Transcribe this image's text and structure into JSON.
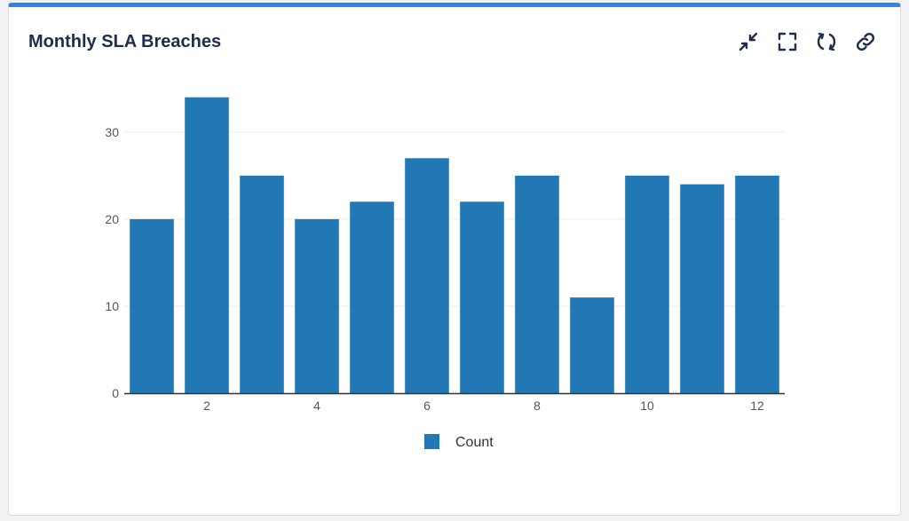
{
  "card": {
    "title": "Monthly SLA Breaches",
    "accent_color": "#2f86e6",
    "toolbar": [
      {
        "name": "collapse-icon"
      },
      {
        "name": "fullscreen-icon"
      },
      {
        "name": "refresh-icon"
      },
      {
        "name": "link-icon"
      }
    ]
  },
  "chart_data": {
    "type": "bar",
    "categories": [
      1,
      2,
      3,
      4,
      5,
      6,
      7,
      8,
      9,
      10,
      11,
      12
    ],
    "series": [
      {
        "name": "Count",
        "color": "#2178b5",
        "values": [
          20,
          34,
          25,
          20,
          22,
          27,
          22,
          25,
          11,
          25,
          24,
          25
        ]
      }
    ],
    "xticks": [
      2,
      4,
      6,
      8,
      10,
      12
    ],
    "yticks": [
      0,
      10,
      20,
      30
    ],
    "ylim": [
      0,
      36
    ],
    "grid": true,
    "legend": "bottom-center"
  }
}
